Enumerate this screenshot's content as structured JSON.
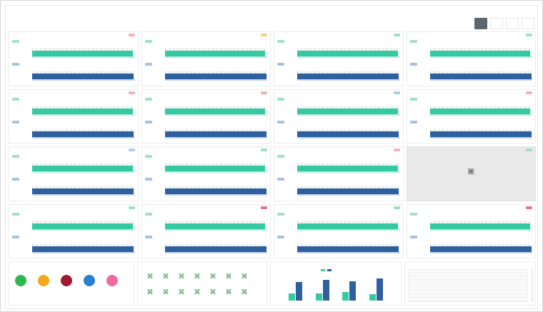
{
  "breadcrumb": "",
  "page_title": "",
  "toolbar": [
    {
      "label": "",
      "active": true
    },
    {
      "label": "",
      "active": false
    },
    {
      "label": "",
      "active": false
    },
    {
      "label": "",
      "active": false
    }
  ],
  "colors": {
    "teal": "#35c9a2",
    "blue": "#2e5f9e",
    "badge_red": "#f2b2b8",
    "badge_orange": "#f6d08e",
    "badge_blue": "#a9cdf0",
    "badge_green": "#9fe0c8",
    "badge_dark_red": "#e07a85"
  },
  "cards": [
    {
      "title": "",
      "badge": "badge_red",
      "teal_fill": 0.98,
      "blue_fill": 0.99
    },
    {
      "title": "",
      "badge": "badge_orange",
      "teal_fill": 0.98,
      "blue_fill": 0.99
    },
    {
      "title": "",
      "badge": "badge_green",
      "teal_fill": 0.98,
      "blue_fill": 0.99
    },
    {
      "title": "",
      "badge": "badge_green",
      "teal_fill": 0.98,
      "blue_fill": 0.99
    },
    {
      "title": "",
      "badge": "badge_red",
      "teal_fill": 0.98,
      "blue_fill": 0.99
    },
    {
      "title": "",
      "badge": "badge_red",
      "teal_fill": 0.98,
      "blue_fill": 0.99
    },
    {
      "title": "",
      "badge": "badge_blue",
      "teal_fill": 0.98,
      "blue_fill": 0.99
    },
    {
      "title": "",
      "badge": "badge_red",
      "teal_fill": 0.98,
      "blue_fill": 0.99
    },
    {
      "title": "",
      "badge": "badge_blue",
      "teal_fill": 0.98,
      "blue_fill": 0.99
    },
    {
      "title": "",
      "badge": "badge_green",
      "teal_fill": 0.98,
      "blue_fill": 0.99
    },
    {
      "title": "",
      "badge": "badge_red",
      "teal_fill": 0.98,
      "blue_fill": 0.99
    },
    {
      "placeholder": true,
      "title": "",
      "badge": "badge_green",
      "icon": "server-icon",
      "caption": ""
    },
    {
      "title": "",
      "badge": "badge_green",
      "teal_fill": 0.98,
      "blue_fill": 0.99
    },
    {
      "title": "",
      "badge": "badge_dark_red",
      "teal_fill": 0.98,
      "blue_fill": 0.99
    },
    {
      "title": "",
      "badge": "badge_green",
      "teal_fill": 0.98,
      "blue_fill": 0.99
    },
    {
      "title": "",
      "badge": "badge_dark_red",
      "teal_fill": 0.98,
      "blue_fill": 0.99
    }
  ],
  "status_panel": {
    "title": "",
    "circles": [
      {
        "glyph": "",
        "color": "#2fb84f",
        "label": ""
      },
      {
        "glyph": "",
        "color": "#f3a81a",
        "label": ""
      },
      {
        "glyph": "",
        "color": "#a0192c",
        "label": ""
      },
      {
        "glyph": "",
        "color": "#2a7fd0",
        "label": ""
      },
      {
        "glyph": "",
        "color": "#f06aa0",
        "label": ""
      }
    ]
  },
  "icon_panel": {
    "title": "",
    "icons": [
      {
        "icon": "device-icon",
        "label": ""
      },
      {
        "icon": "device-icon",
        "label": ""
      },
      {
        "icon": "device-icon",
        "label": ""
      },
      {
        "icon": "device-icon",
        "label": ""
      },
      {
        "icon": "device-icon",
        "label": ""
      },
      {
        "icon": "device-icon",
        "label": ""
      },
      {
        "icon": "device-icon",
        "label": ""
      },
      {
        "icon": "device-icon",
        "label": ""
      },
      {
        "icon": "device-icon",
        "label": ""
      },
      {
        "icon": "device-icon",
        "label": ""
      },
      {
        "icon": "device-icon",
        "label": ""
      },
      {
        "icon": "device-icon",
        "label": ""
      },
      {
        "icon": "device-icon",
        "label": ""
      },
      {
        "icon": "device-icon",
        "label": ""
      }
    ]
  },
  "mini_chart": {
    "title": "",
    "pairs": [
      {
        "teal": 0.3,
        "blue": 0.75
      },
      {
        "teal": 0.28,
        "blue": 0.85
      },
      {
        "teal": 0.35,
        "blue": 0.8
      },
      {
        "teal": 0.25,
        "blue": 0.9
      }
    ]
  },
  "table_panel": {
    "title": ""
  }
}
